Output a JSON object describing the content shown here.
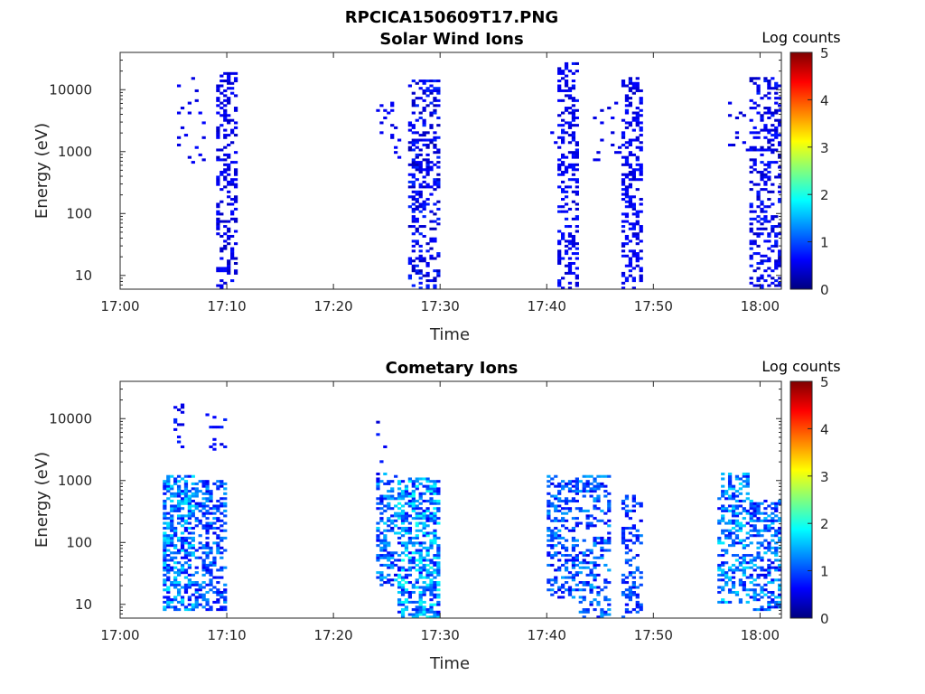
{
  "figure_title": "RPCICA150609T17.PNG",
  "colormap_stops": [
    "#00007f",
    "#0000ff",
    "#007fff",
    "#00ffff",
    "#7fff7f",
    "#ffff00",
    "#ff7f00",
    "#ff0000",
    "#7f0000"
  ],
  "chart_data": [
    {
      "type": "heatmap",
      "title": "Solar Wind Ions",
      "xlabel": "Time",
      "ylabel": "Energy (eV)",
      "y_scale": "log",
      "xlim": [
        "17:00",
        "18:02"
      ],
      "ylim": [
        6,
        40000
      ],
      "x_ticks": [
        "17:00",
        "17:10",
        "17:20",
        "17:30",
        "17:40",
        "17:50",
        "18:00"
      ],
      "y_ticks": [
        {
          "value": 10,
          "label": "10"
        },
        {
          "value": 100,
          "label": "100"
        },
        {
          "value": 1000,
          "label": "1000"
        },
        {
          "value": 10000,
          "label": "10000"
        }
      ],
      "colorbar": {
        "label": "Log counts",
        "range": [
          0,
          5
        ],
        "ticks": [
          "0",
          "1",
          "2",
          "3",
          "4",
          "5"
        ]
      },
      "clusters": [
        {
          "t_start": "17:05",
          "t_end": "17:08",
          "e_min": 300,
          "e_max": 17000,
          "density": 0.05,
          "level": 0.55,
          "level_spread": 0.12
        },
        {
          "t_start": "17:09",
          "t_end": "17:11",
          "e_min": 6,
          "e_max": 20000,
          "density": 0.34,
          "level": 0.5,
          "level_spread": 0.2
        },
        {
          "t_start": "17:24",
          "t_end": "17:27",
          "e_min": 800,
          "e_max": 7000,
          "density": 0.05,
          "level": 0.55,
          "level_spread": 0.1
        },
        {
          "t_start": "17:27",
          "t_end": "17:30",
          "e_min": 6,
          "e_max": 14000,
          "density": 0.35,
          "level": 0.55,
          "level_spread": 0.3
        },
        {
          "t_start": "17:40",
          "t_end": "17:41",
          "e_min": 600,
          "e_max": 8000,
          "density": 0.04,
          "level": 0.5,
          "level_spread": 0.1
        },
        {
          "t_start": "17:41",
          "t_end": "17:43",
          "e_min": 6,
          "e_max": 30000,
          "density": 0.35,
          "level": 0.55,
          "level_spread": 0.2
        },
        {
          "t_start": "17:44",
          "t_end": "17:47",
          "e_min": 400,
          "e_max": 7000,
          "density": 0.06,
          "level": 0.5,
          "level_spread": 0.1
        },
        {
          "t_start": "17:47",
          "t_end": "17:49",
          "e_min": 6,
          "e_max": 16000,
          "density": 0.35,
          "level": 0.55,
          "level_spread": 0.2
        },
        {
          "t_start": "17:57",
          "t_end": "17:59",
          "e_min": 700,
          "e_max": 8000,
          "density": 0.05,
          "level": 0.5,
          "level_spread": 0.1
        },
        {
          "t_start": "17:59",
          "t_end": "18:02",
          "e_min": 6,
          "e_max": 16000,
          "density": 0.33,
          "level": 0.55,
          "level_spread": 0.25
        }
      ]
    },
    {
      "type": "heatmap",
      "title": "Cometary Ions",
      "xlabel": "Time",
      "ylabel": "Energy (eV)",
      "y_scale": "log",
      "xlim": [
        "17:00",
        "18:02"
      ],
      "ylim": [
        6,
        40000
      ],
      "x_ticks": [
        "17:00",
        "17:10",
        "17:20",
        "17:30",
        "17:40",
        "17:50",
        "18:00"
      ],
      "y_ticks": [
        {
          "value": 10,
          "label": "10"
        },
        {
          "value": 100,
          "label": "100"
        },
        {
          "value": 1000,
          "label": "1000"
        },
        {
          "value": 10000,
          "label": "10000"
        }
      ],
      "colorbar": {
        "label": "Log counts",
        "range": [
          0,
          5
        ],
        "ticks": [
          "0",
          "1",
          "2",
          "3",
          "4",
          "5"
        ]
      },
      "clusters": [
        {
          "t_start": "17:04",
          "t_end": "17:07",
          "e_min": 8,
          "e_max": 1200,
          "density": 0.55,
          "level": 1.2,
          "level_spread": 0.6
        },
        {
          "t_start": "17:05",
          "t_end": "17:06",
          "e_min": 3000,
          "e_max": 17000,
          "density": 0.15,
          "level": 0.6,
          "level_spread": 0.2
        },
        {
          "t_start": "17:07",
          "t_end": "17:10",
          "e_min": 8,
          "e_max": 1000,
          "density": 0.4,
          "level": 1.0,
          "level_spread": 0.5
        },
        {
          "t_start": "17:08",
          "t_end": "17:10",
          "e_min": 3000,
          "e_max": 12000,
          "density": 0.1,
          "level": 0.6,
          "level_spread": 0.2
        },
        {
          "t_start": "17:24",
          "t_end": "17:26",
          "e_min": 20,
          "e_max": 1300,
          "density": 0.45,
          "level": 1.1,
          "level_spread": 0.6
        },
        {
          "t_start": "17:24",
          "t_end": "17:25",
          "e_min": 2000,
          "e_max": 9000,
          "density": 0.12,
          "level": 0.6,
          "level_spread": 0.2
        },
        {
          "t_start": "17:26",
          "t_end": "17:30",
          "e_min": 6,
          "e_max": 1100,
          "density": 0.55,
          "level": 1.3,
          "level_spread": 0.7
        },
        {
          "t_start": "17:40",
          "t_end": "17:43",
          "e_min": 12,
          "e_max": 1200,
          "density": 0.42,
          "level": 1.0,
          "level_spread": 0.5
        },
        {
          "t_start": "17:43",
          "t_end": "17:46",
          "e_min": 6,
          "e_max": 1200,
          "density": 0.35,
          "level": 1.0,
          "level_spread": 0.5
        },
        {
          "t_start": "17:47",
          "t_end": "17:49",
          "e_min": 6,
          "e_max": 600,
          "density": 0.3,
          "level": 0.9,
          "level_spread": 0.4
        },
        {
          "t_start": "17:56",
          "t_end": "17:59",
          "e_min": 10,
          "e_max": 1300,
          "density": 0.4,
          "level": 1.2,
          "level_spread": 0.6
        },
        {
          "t_start": "17:59",
          "t_end": "18:02",
          "e_min": 8,
          "e_max": 500,
          "density": 0.45,
          "level": 1.1,
          "level_spread": 0.6
        }
      ]
    }
  ]
}
